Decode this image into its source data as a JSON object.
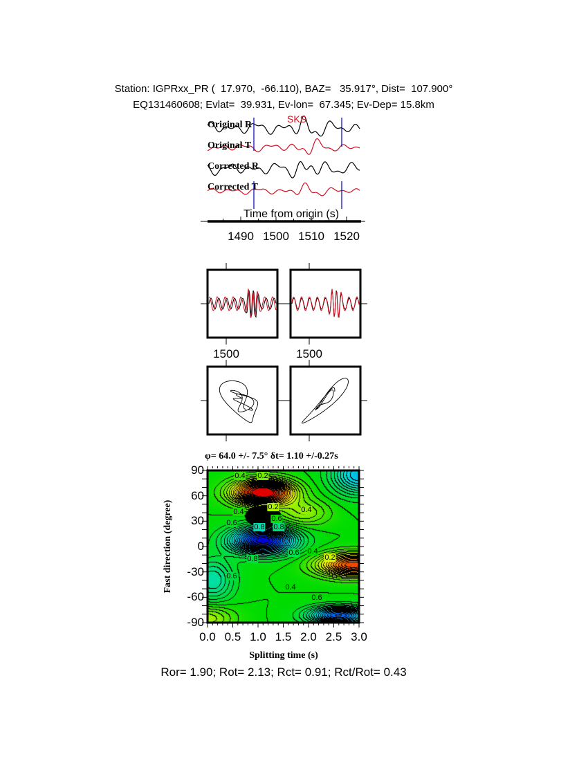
{
  "header": {
    "line1": "Station: IGPRxx_PR (  17.970,  -66.110), BAZ=   35.917°, Dist=  107.900°",
    "line2": "EQ131460608; Evlat=  39.931, Ev-lon=  67.345; Ev-Dep= 15.8km"
  },
  "traces": {
    "labels": [
      "Original R",
      "Original T",
      "Corrected R",
      "Corrected T"
    ],
    "phase": "SKS",
    "xlabel": "Time from origin (s)",
    "xticks": [
      "1490",
      "1500",
      "1510",
      "1520"
    ],
    "colors": {
      "radial": "#000000",
      "transverse": "#d01020",
      "window": "#1010c0"
    }
  },
  "windows": {
    "tick_left": "1500",
    "tick_right": "1500"
  },
  "chart_data": {
    "type": "heatmap",
    "title": "φ= 64.0 +/- 7.5° δt= 1.10 +/-0.27s",
    "xlabel": "Splitting time (s)",
    "ylabel": "Fast direction (degree)",
    "xlim": [
      0.0,
      3.0
    ],
    "ylim": [
      -90,
      90
    ],
    "xticks": [
      "0.0",
      "0.5",
      "1.0",
      "1.5",
      "2.0",
      "2.5",
      "3.0"
    ],
    "yticks": [
      "90",
      "60",
      "30",
      "0",
      "-30",
      "-60",
      "-90"
    ],
    "best_fit": {
      "dt": 1.1,
      "phi": 64.0,
      "dt_err": 0.27,
      "phi_err": 7.5
    },
    "contour_labels": [
      "0.4",
      "0.2",
      "0.2",
      "0.4",
      "0.4",
      "0.6",
      "0.6",
      "0.8",
      "0.8",
      "0.6",
      "0.4",
      "0.2",
      "0.8",
      "0.6",
      "0.4",
      "0.6"
    ],
    "colormap": [
      "#e00000",
      "#ff8c00",
      "#ffff00",
      "#00dc00",
      "#00e0e0",
      "#0070ff",
      "#0000d8"
    ]
  },
  "footer": {
    "ratios": "Ror= 1.90; Rot= 2.13; Rct= 0.91; Rct/Rot= 0.43"
  }
}
